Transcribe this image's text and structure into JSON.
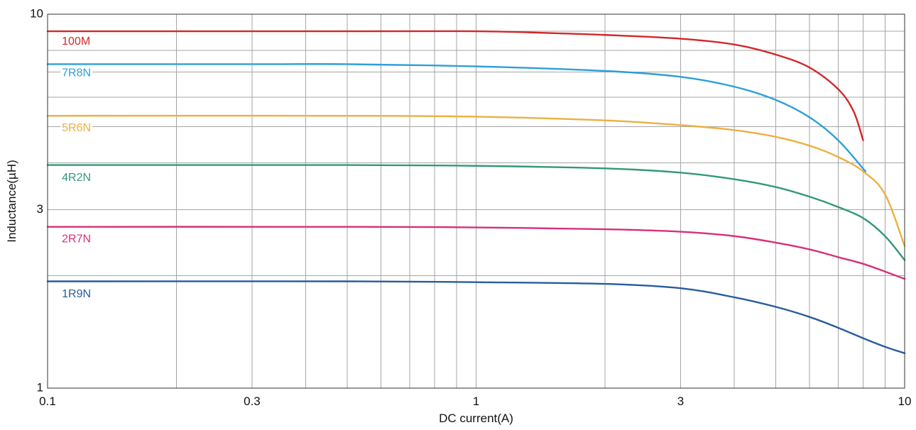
{
  "chart_data": {
    "type": "line",
    "title": "",
    "xlabel": "DC current(A)",
    "ylabel": "Inductance(µH)",
    "x_scale": "log",
    "y_scale": "log",
    "xlim": [
      0.1,
      10
    ],
    "ylim": [
      1,
      10
    ],
    "x_ticks": [
      {
        "value": 0.1,
        "label": "0.1"
      },
      {
        "value": 0.3,
        "label": "0.3"
      },
      {
        "value": 1,
        "label": "1"
      },
      {
        "value": 3,
        "label": "3"
      },
      {
        "value": 10,
        "label": "10"
      }
    ],
    "y_ticks": [
      {
        "value": 1,
        "label": "1"
      },
      {
        "value": 3,
        "label": "3"
      },
      {
        "value": 10,
        "label": "10"
      }
    ],
    "x_grid": [
      0.1,
      0.2,
      0.3,
      0.4,
      0.5,
      0.6,
      0.7,
      0.8,
      0.9,
      1,
      2,
      3,
      4,
      5,
      6,
      7,
      8,
      9,
      10
    ],
    "y_grid": [
      1,
      2,
      3,
      4,
      5,
      6,
      7,
      8,
      9,
      10
    ],
    "grid": true,
    "legend": "inline labels",
    "series": [
      {
        "name": "100M",
        "color": "#d3272b",
        "label_at": [
          0.108,
          8.45
        ],
        "points": [
          [
            0.1,
            9.0
          ],
          [
            0.5,
            9.0
          ],
          [
            1.0,
            9.0
          ],
          [
            1.5,
            8.9
          ],
          [
            2.0,
            8.8
          ],
          [
            3.0,
            8.6
          ],
          [
            4.0,
            8.3
          ],
          [
            5.0,
            7.8
          ],
          [
            6.0,
            7.2
          ],
          [
            7.0,
            6.3
          ],
          [
            7.6,
            5.5
          ],
          [
            8.0,
            4.6
          ]
        ]
      },
      {
        "name": "7R8N",
        "color": "#2d9fd8",
        "label_at": [
          0.108,
          6.95
        ],
        "points": [
          [
            0.1,
            7.35
          ],
          [
            0.3,
            7.35
          ],
          [
            0.5,
            7.35
          ],
          [
            1.0,
            7.25
          ],
          [
            2.0,
            7.05
          ],
          [
            3.0,
            6.8
          ],
          [
            4.0,
            6.4
          ],
          [
            5.0,
            5.9
          ],
          [
            6.0,
            5.3
          ],
          [
            7.0,
            4.6
          ],
          [
            8.1,
            3.8
          ]
        ]
      },
      {
        "name": "5R6N",
        "color": "#ecb041",
        "label_at": [
          0.108,
          4.95
        ],
        "points": [
          [
            0.1,
            5.35
          ],
          [
            0.5,
            5.35
          ],
          [
            1.0,
            5.32
          ],
          [
            2.0,
            5.2
          ],
          [
            3.0,
            5.05
          ],
          [
            4.0,
            4.9
          ],
          [
            5.0,
            4.7
          ],
          [
            6.0,
            4.45
          ],
          [
            7.0,
            4.15
          ],
          [
            8.0,
            3.8
          ],
          [
            9.0,
            3.3
          ],
          [
            10.0,
            2.4
          ]
        ]
      },
      {
        "name": "4R2N",
        "color": "#33977c",
        "label_at": [
          0.108,
          3.65
        ],
        "points": [
          [
            0.1,
            3.95
          ],
          [
            0.5,
            3.95
          ],
          [
            1.0,
            3.93
          ],
          [
            2.0,
            3.87
          ],
          [
            3.0,
            3.77
          ],
          [
            4.0,
            3.62
          ],
          [
            5.0,
            3.45
          ],
          [
            6.0,
            3.25
          ],
          [
            7.0,
            3.05
          ],
          [
            8.0,
            2.85
          ],
          [
            9.0,
            2.55
          ],
          [
            10.0,
            2.2
          ]
        ]
      },
      {
        "name": "2R7N",
        "color": "#d6307a",
        "label_at": [
          0.108,
          2.5
        ],
        "points": [
          [
            0.1,
            2.7
          ],
          [
            0.5,
            2.7
          ],
          [
            1.0,
            2.69
          ],
          [
            2.0,
            2.66
          ],
          [
            3.0,
            2.62
          ],
          [
            4.0,
            2.55
          ],
          [
            5.0,
            2.45
          ],
          [
            6.0,
            2.35
          ],
          [
            7.0,
            2.24
          ],
          [
            8.0,
            2.15
          ],
          [
            9.0,
            2.05
          ],
          [
            10.0,
            1.96
          ]
        ]
      },
      {
        "name": "1R9N",
        "color": "#285c9e",
        "label_at": [
          0.108,
          1.78
        ],
        "points": [
          [
            0.1,
            1.93
          ],
          [
            0.5,
            1.93
          ],
          [
            1.0,
            1.92
          ],
          [
            2.0,
            1.9
          ],
          [
            3.0,
            1.85
          ],
          [
            4.0,
            1.75
          ],
          [
            5.0,
            1.65
          ],
          [
            6.0,
            1.55
          ],
          [
            7.0,
            1.45
          ],
          [
            8.0,
            1.36
          ],
          [
            9.0,
            1.29
          ],
          [
            10.0,
            1.24
          ]
        ]
      }
    ]
  }
}
